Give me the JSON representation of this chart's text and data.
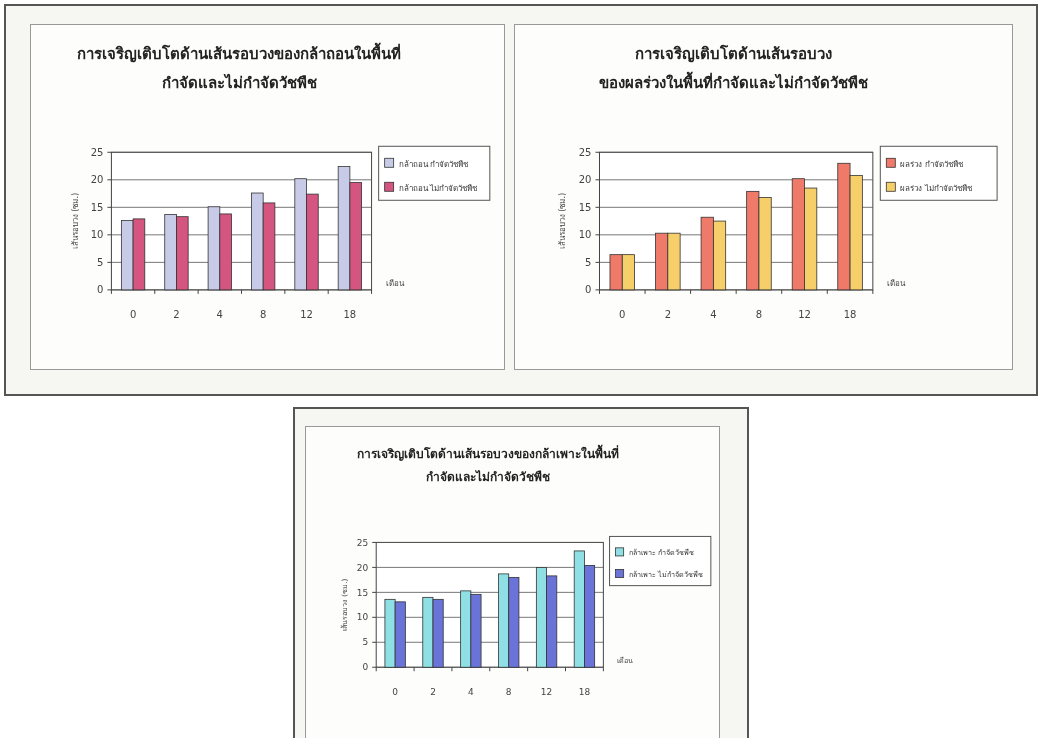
{
  "chart_data": [
    {
      "type": "bar",
      "title": "การเจริญเติบโตด้านเส้นรอบวงของกล้าถอนในพื้นที่\nกำจัดและไม่กำจัดวัชพืช",
      "xlabel": "เดือน",
      "ylabel": "เส้นรอบวง (ซม.)",
      "categories": [
        "0",
        "2",
        "4",
        "8",
        "12",
        "18"
      ],
      "series": [
        {
          "name": "กล้าถอน กำจัดวัชพืช",
          "color": "#c8cbe8",
          "values": [
            12.6,
            13.7,
            15.1,
            17.6,
            20.2,
            22.4
          ]
        },
        {
          "name": "กล้าถอน ไม่กำจัดวัชพืช",
          "color": "#d4557f",
          "values": [
            12.9,
            13.3,
            13.8,
            15.8,
            17.4,
            19.5
          ]
        }
      ],
      "ylim": [
        0,
        25
      ],
      "yticks": [
        0,
        5,
        10,
        15,
        20,
        25
      ],
      "grid": "y",
      "legend": "right"
    },
    {
      "type": "bar",
      "title": "การเจริญเติบโตด้านเส้นรอบวง\nของผลร่วงในพื้นที่กำจัดและไม่กำจัดวัชพืช",
      "xlabel": "เดือน",
      "ylabel": "เส้นรอบวง (ซม.)",
      "categories": [
        "0",
        "2",
        "4",
        "8",
        "12",
        "18"
      ],
      "series": [
        {
          "name": "ผลร่วง กำจัดวัชพืช",
          "color": "#ef7a6a",
          "values": [
            6.4,
            10.3,
            13.2,
            17.9,
            20.2,
            23.0
          ]
        },
        {
          "name": "ผลร่วง ไม่กำจัดวัชพืช",
          "color": "#f6cf6a",
          "values": [
            6.4,
            10.3,
            12.5,
            16.8,
            18.5,
            20.8
          ]
        }
      ],
      "ylim": [
        0,
        25
      ],
      "yticks": [
        0,
        5,
        10,
        15,
        20,
        25
      ],
      "grid": "y",
      "legend": "right"
    },
    {
      "type": "bar",
      "title": "การเจริญเติบโตด้านเส้นรอบวงของกล้าเพาะในพื้นที่\nกำจัดและไม่กำจัดวัชพืช",
      "xlabel": "เดือน",
      "ylabel": "เส้นรอบวง (ซม.)",
      "categories": [
        "0",
        "2",
        "4",
        "8",
        "12",
        "18"
      ],
      "series": [
        {
          "name": "กล้าเพาะ กำจัดวัชพืช",
          "color": "#8fe0e4",
          "values": [
            13.6,
            14.0,
            15.3,
            18.7,
            20.0,
            23.3
          ]
        },
        {
          "name": "กล้าเพาะ ไม่กำจัดวัชพืช",
          "color": "#6a74d8",
          "values": [
            13.1,
            13.6,
            14.6,
            18.0,
            18.3,
            20.4
          ]
        }
      ],
      "ylim": [
        0,
        25
      ],
      "yticks": [
        0,
        5,
        10,
        15,
        20,
        25
      ],
      "grid": "y",
      "legend": "right"
    }
  ]
}
